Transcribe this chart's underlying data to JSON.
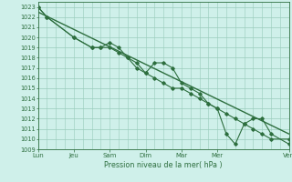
{
  "xlabel": "Pression niveau de la mer( hPa )",
  "ylim": [
    1009,
    1023.5
  ],
  "yticks": [
    1009,
    1010,
    1011,
    1012,
    1013,
    1014,
    1015,
    1016,
    1017,
    1018,
    1019,
    1020,
    1021,
    1022,
    1023
  ],
  "x_day_labels": [
    "Lun",
    "Jeu",
    "Sam",
    "Dim",
    "Mar",
    "Mer",
    "Ven"
  ],
  "x_day_positions": [
    0,
    2,
    4,
    6,
    8,
    10,
    14
  ],
  "xlim": [
    0,
    14
  ],
  "background_color": "#cff0ea",
  "grid_color": "#99ccbb",
  "line_color": "#2d6e3e",
  "series1_x": [
    0.0,
    0.5,
    2.0,
    3.0,
    3.5,
    4.0,
    4.5,
    5.0,
    5.5,
    6.0,
    6.5,
    7.0,
    7.5,
    8.0,
    8.5,
    9.0,
    9.5,
    10.0,
    10.5,
    11.0,
    11.5,
    12.0,
    12.5,
    13.0,
    14.0
  ],
  "series1_y": [
    1023.0,
    1022.0,
    1020.0,
    1019.0,
    1019.0,
    1019.0,
    1018.5,
    1018.0,
    1017.5,
    1016.5,
    1017.5,
    1017.5,
    1017.0,
    1015.5,
    1015.0,
    1014.5,
    1013.5,
    1013.0,
    1010.5,
    1009.5,
    1011.5,
    1012.0,
    1012.0,
    1010.5,
    1009.5
  ],
  "series2_x": [
    0.0,
    0.5,
    2.0,
    3.0,
    3.5,
    4.0,
    4.5,
    5.0,
    5.5,
    6.0,
    6.5,
    7.0,
    7.5,
    8.0,
    8.5,
    9.0,
    9.5,
    10.0,
    10.5,
    11.0,
    11.5,
    12.0,
    12.5,
    13.0,
    14.0
  ],
  "series2_y": [
    1023.0,
    1022.0,
    1020.0,
    1019.0,
    1019.0,
    1019.5,
    1019.0,
    1018.0,
    1017.0,
    1016.5,
    1016.0,
    1015.5,
    1015.0,
    1015.0,
    1014.5,
    1014.0,
    1013.5,
    1013.0,
    1012.5,
    1012.0,
    1011.5,
    1011.0,
    1010.5,
    1010.0,
    1010.0
  ],
  "trend_x": [
    0,
    14
  ],
  "trend_y": [
    1022.5,
    1010.5
  ]
}
